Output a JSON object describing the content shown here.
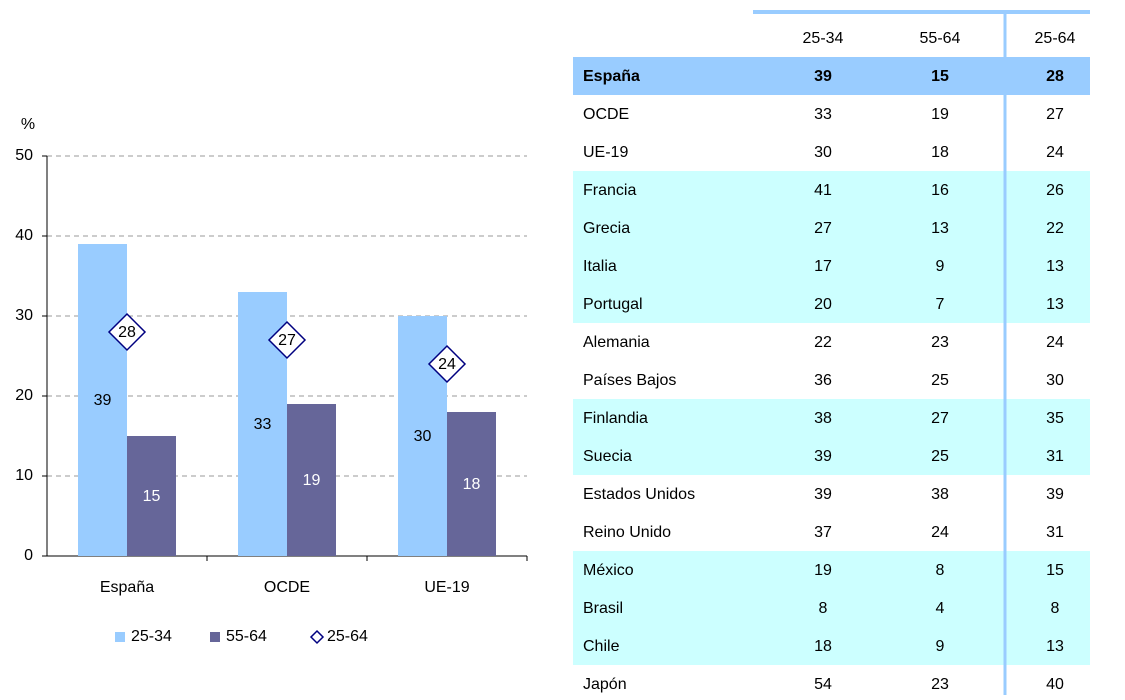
{
  "chart_data": {
    "type": "bar",
    "y_label": "%",
    "categories": [
      "España",
      "OCDE",
      "UE-19"
    ],
    "series": [
      {
        "name": "25-34",
        "color": "#99ccff",
        "values": [
          39,
          33,
          30
        ]
      },
      {
        "name": "55-64",
        "color": "#666699",
        "values": [
          15,
          19,
          18
        ]
      },
      {
        "name": "25-64",
        "color": "#000080",
        "marker": "diamond",
        "values": [
          28,
          27,
          24
        ]
      }
    ],
    "ylim": [
      0,
      50
    ],
    "yticks": [
      0,
      10,
      20,
      30,
      40,
      50
    ],
    "grid": true,
    "legend": "bottom"
  },
  "table": {
    "columns": [
      "25-34",
      "55-64",
      "25-64"
    ],
    "rows": [
      {
        "label": "España",
        "values": [
          39,
          15,
          28
        ],
        "fill": "#99ccff",
        "bold": true
      },
      {
        "label": "OCDE",
        "values": [
          33,
          19,
          27
        ]
      },
      {
        "label": "UE-19",
        "values": [
          30,
          18,
          24
        ]
      },
      {
        "label": "Francia",
        "values": [
          41,
          16,
          26
        ],
        "fill": "#ccffff"
      },
      {
        "label": "Grecia",
        "values": [
          27,
          13,
          22
        ],
        "fill": "#ccffff"
      },
      {
        "label": "Italia",
        "values": [
          17,
          9,
          13
        ],
        "fill": "#ccffff"
      },
      {
        "label": "Portugal",
        "values": [
          20,
          7,
          13
        ],
        "fill": "#ccffff"
      },
      {
        "label": "Alemania",
        "values": [
          22,
          23,
          24
        ]
      },
      {
        "label": "Países Bajos",
        "values": [
          36,
          25,
          30
        ]
      },
      {
        "label": "Finlandia",
        "values": [
          38,
          27,
          35
        ],
        "fill": "#ccffff"
      },
      {
        "label": "Suecia",
        "values": [
          39,
          25,
          31
        ],
        "fill": "#ccffff"
      },
      {
        "label": "Estados Unidos",
        "values": [
          39,
          38,
          39
        ]
      },
      {
        "label": "Reino Unido",
        "values": [
          37,
          24,
          31
        ]
      },
      {
        "label": "México",
        "values": [
          19,
          8,
          15
        ],
        "fill": "#ccffff"
      },
      {
        "label": "Brasil",
        "values": [
          8,
          4,
          8
        ],
        "fill": "#ccffff"
      },
      {
        "label": "Chile",
        "values": [
          18,
          9,
          13
        ],
        "fill": "#ccffff"
      },
      {
        "label": "Japón",
        "values": [
          54,
          23,
          40
        ]
      }
    ]
  }
}
